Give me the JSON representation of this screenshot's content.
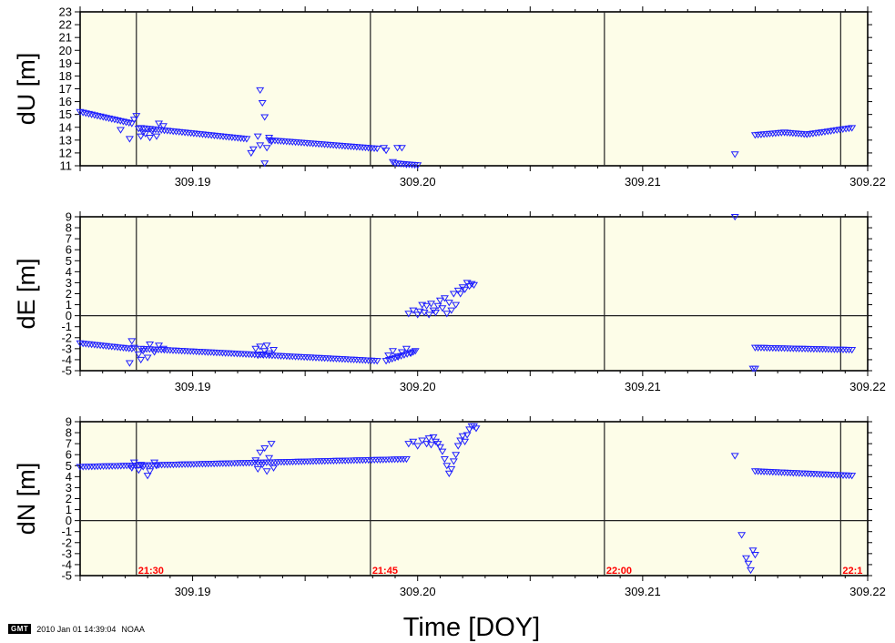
{
  "footer": {
    "logo": "GMT",
    "timestamp": "2010 Jan 01 14:39:04",
    "org": "NOAA"
  },
  "chart_data": {
    "type": "scatter",
    "xlabel": "Time [DOY]",
    "xlim": [
      309.185,
      309.22
    ],
    "xticks": [
      "309.19",
      "309.20",
      "309.21",
      "309.22"
    ],
    "vertical_lines_x": [
      309.1875,
      309.1979,
      309.2083,
      309.2188
    ],
    "time_labels": [
      {
        "x": 309.1875,
        "label": "21:30"
      },
      {
        "x": 309.1979,
        "label": "21:45"
      },
      {
        "x": 309.2083,
        "label": "22:00"
      },
      {
        "x": 309.2188,
        "label": "22:1"
      }
    ],
    "marker_color": "#2020ff",
    "panels": [
      {
        "ylabel": "dU [m]",
        "ylim": [
          11,
          23
        ],
        "yticks": [
          11,
          12,
          13,
          14,
          15,
          16,
          17,
          18,
          19,
          20,
          21,
          22,
          23
        ],
        "zero_line": false,
        "segments": [
          {
            "x0": 309.185,
            "x1": 309.1873,
            "y0": 15.2,
            "y1": 14.3
          },
          {
            "x0": 309.1877,
            "x1": 309.1924,
            "y0": 13.95,
            "y1": 13.1
          },
          {
            "x0": 309.1934,
            "x1": 309.1982,
            "y0": 13.0,
            "y1": 12.35
          },
          {
            "x0": 309.199,
            "x1": 309.2,
            "y0": 11.2,
            "y1": 11.05
          },
          {
            "x0": 309.215,
            "x1": 309.2163,
            "y0": 13.4,
            "y1": 13.6
          },
          {
            "x0": 309.2163,
            "x1": 309.2173,
            "y0": 13.6,
            "y1": 13.45
          },
          {
            "x0": 309.2173,
            "x1": 309.2193,
            "y0": 13.45,
            "y1": 13.95
          }
        ],
        "points": [
          [
            309.1875,
            14.9
          ],
          [
            309.1874,
            14.6
          ],
          [
            309.1876,
            13.9
          ],
          [
            309.1878,
            13.6
          ],
          [
            309.1877,
            13.3
          ],
          [
            309.1879,
            13.5
          ],
          [
            309.1882,
            13.7
          ],
          [
            309.1881,
            13.2
          ],
          [
            309.1884,
            13.3
          ],
          [
            309.1885,
            14.3
          ],
          [
            309.1887,
            14.1
          ],
          [
            309.1872,
            13.1
          ],
          [
            309.1868,
            13.8
          ],
          [
            309.1926,
            12.0
          ],
          [
            309.1927,
            12.3
          ],
          [
            309.1929,
            13.3
          ],
          [
            309.193,
            16.9
          ],
          [
            309.1931,
            15.9
          ],
          [
            309.1932,
            14.8
          ],
          [
            309.193,
            12.6
          ],
          [
            309.1933,
            12.4
          ],
          [
            309.1932,
            11.2
          ],
          [
            309.1934,
            13.2
          ],
          [
            309.1935,
            12.9
          ],
          [
            309.1985,
            12.4
          ],
          [
            309.1986,
            12.2
          ],
          [
            309.1989,
            11.3
          ],
          [
            309.1991,
            12.4
          ],
          [
            309.1993,
            12.4
          ],
          [
            309.1995,
            11.1
          ],
          [
            309.2141,
            11.9
          ]
        ]
      },
      {
        "ylabel": "dE [m]",
        "ylim": [
          -5,
          9
        ],
        "yticks": [
          -5,
          -4,
          -3,
          -2,
          -1,
          0,
          1,
          2,
          3,
          4,
          5,
          6,
          7,
          8,
          9
        ],
        "zero_line": true,
        "segments": [
          {
            "x0": 309.185,
            "x1": 309.1873,
            "y0": -2.5,
            "y1": -3.0
          },
          {
            "x0": 309.1877,
            "x1": 309.1982,
            "y0": -3.0,
            "y1": -4.1
          },
          {
            "x0": 309.1986,
            "x1": 309.1998,
            "y0": -4.1,
            "y1": -3.3
          },
          {
            "x0": 309.215,
            "x1": 309.2193,
            "y0": -2.9,
            "y1": -3.1
          }
        ],
        "points": [
          [
            309.1873,
            -2.3
          ],
          [
            309.1874,
            -2.9
          ],
          [
            309.1872,
            -4.3
          ],
          [
            309.1876,
            -3.5
          ],
          [
            309.1877,
            -4.0
          ],
          [
            309.1878,
            -3.2
          ],
          [
            309.188,
            -3.8
          ],
          [
            309.1881,
            -2.6
          ],
          [
            309.1883,
            -3.3
          ],
          [
            309.1885,
            -2.7
          ],
          [
            309.1887,
            -3.0
          ],
          [
            309.1928,
            -3.0
          ],
          [
            309.1929,
            -3.6
          ],
          [
            309.193,
            -2.8
          ],
          [
            309.1931,
            -3.5
          ],
          [
            309.1932,
            -3.2
          ],
          [
            309.1933,
            -2.7
          ],
          [
            309.1934,
            -3.4
          ],
          [
            309.1936,
            -3.1
          ],
          [
            309.1987,
            -3.6
          ],
          [
            309.1989,
            -3.2
          ],
          [
            309.1991,
            -3.7
          ],
          [
            309.1993,
            -3.3
          ],
          [
            309.1995,
            -3.0
          ],
          [
            309.1997,
            -3.4
          ],
          [
            309.1999,
            -3.2
          ],
          [
            309.1996,
            0.2
          ],
          [
            309.1998,
            0.5
          ],
          [
            309.2,
            0.1
          ],
          [
            309.2001,
            0.4
          ],
          [
            309.2002,
            1.0
          ],
          [
            309.2003,
            0.3
          ],
          [
            309.2004,
            0.9
          ],
          [
            309.2005,
            0.1
          ],
          [
            309.2006,
            1.1
          ],
          [
            309.2007,
            0.5
          ],
          [
            309.2008,
            0.3
          ],
          [
            309.2009,
            0.9
          ],
          [
            309.201,
            1.4
          ],
          [
            309.2011,
            0.7
          ],
          [
            309.2012,
            1.6
          ],
          [
            309.2013,
            0.2
          ],
          [
            309.2014,
            1.2
          ],
          [
            309.2015,
            0.5
          ],
          [
            309.2016,
            2.0
          ],
          [
            309.2017,
            1.0
          ],
          [
            309.2018,
            2.3
          ],
          [
            309.2019,
            2.0
          ],
          [
            309.202,
            2.6
          ],
          [
            309.2021,
            2.4
          ],
          [
            309.2022,
            3.0
          ],
          [
            309.2023,
            2.7
          ],
          [
            309.2024,
            2.9
          ],
          [
            309.2025,
            2.8
          ],
          [
            309.2141,
            9.0
          ],
          [
            309.2149,
            -4.8
          ],
          [
            309.215,
            -4.8
          ]
        ]
      },
      {
        "ylabel": "dN [m]",
        "ylim": [
          -5,
          9
        ],
        "yticks": [
          -5,
          -4,
          -3,
          -2,
          -1,
          0,
          1,
          2,
          3,
          4,
          5,
          6,
          7,
          8,
          9
        ],
        "zero_line": true,
        "segments": [
          {
            "x0": 309.185,
            "x1": 309.1995,
            "y0": 4.9,
            "y1": 5.6
          },
          {
            "x0": 309.215,
            "x1": 309.2193,
            "y0": 4.5,
            "y1": 4.1
          }
        ],
        "points": [
          [
            309.1873,
            4.8
          ],
          [
            309.1874,
            5.3
          ],
          [
            309.1876,
            4.6
          ],
          [
            309.1877,
            5.1
          ],
          [
            309.1878,
            4.9
          ],
          [
            309.188,
            4.1
          ],
          [
            309.1881,
            4.5
          ],
          [
            309.1883,
            5.3
          ],
          [
            309.1884,
            5.0
          ],
          [
            309.1928,
            5.5
          ],
          [
            309.1929,
            4.7
          ],
          [
            309.193,
            6.2
          ],
          [
            309.1931,
            5.1
          ],
          [
            309.1932,
            6.6
          ],
          [
            309.1933,
            4.5
          ],
          [
            309.1934,
            5.7
          ],
          [
            309.1935,
            7.0
          ],
          [
            309.1936,
            4.8
          ],
          [
            309.1996,
            7.0
          ],
          [
            309.1998,
            7.2
          ],
          [
            309.2,
            6.8
          ],
          [
            309.2002,
            7.3
          ],
          [
            309.2004,
            7.0
          ],
          [
            309.2005,
            7.5
          ],
          [
            309.2006,
            6.9
          ],
          [
            309.2007,
            7.6
          ],
          [
            309.2008,
            7.2
          ],
          [
            309.2009,
            7.0
          ],
          [
            309.201,
            6.7
          ],
          [
            309.2011,
            6.3
          ],
          [
            309.2012,
            5.6
          ],
          [
            309.2013,
            5.0
          ],
          [
            309.2014,
            4.3
          ],
          [
            309.2015,
            4.7
          ],
          [
            309.2016,
            5.4
          ],
          [
            309.2017,
            6.0
          ],
          [
            309.2018,
            6.8
          ],
          [
            309.2019,
            7.3
          ],
          [
            309.202,
            7.7
          ],
          [
            309.2021,
            7.2
          ],
          [
            309.2022,
            7.8
          ],
          [
            309.2023,
            8.3
          ],
          [
            309.2024,
            8.6
          ],
          [
            309.2025,
            8.6
          ],
          [
            309.2026,
            8.4
          ],
          [
            309.2141,
            5.9
          ],
          [
            309.2144,
            -1.3
          ],
          [
            309.2146,
            -3.4
          ],
          [
            309.2147,
            -3.9
          ],
          [
            309.2148,
            -4.5
          ],
          [
            309.2149,
            -2.7
          ],
          [
            309.215,
            -3.1
          ]
        ]
      }
    ]
  }
}
